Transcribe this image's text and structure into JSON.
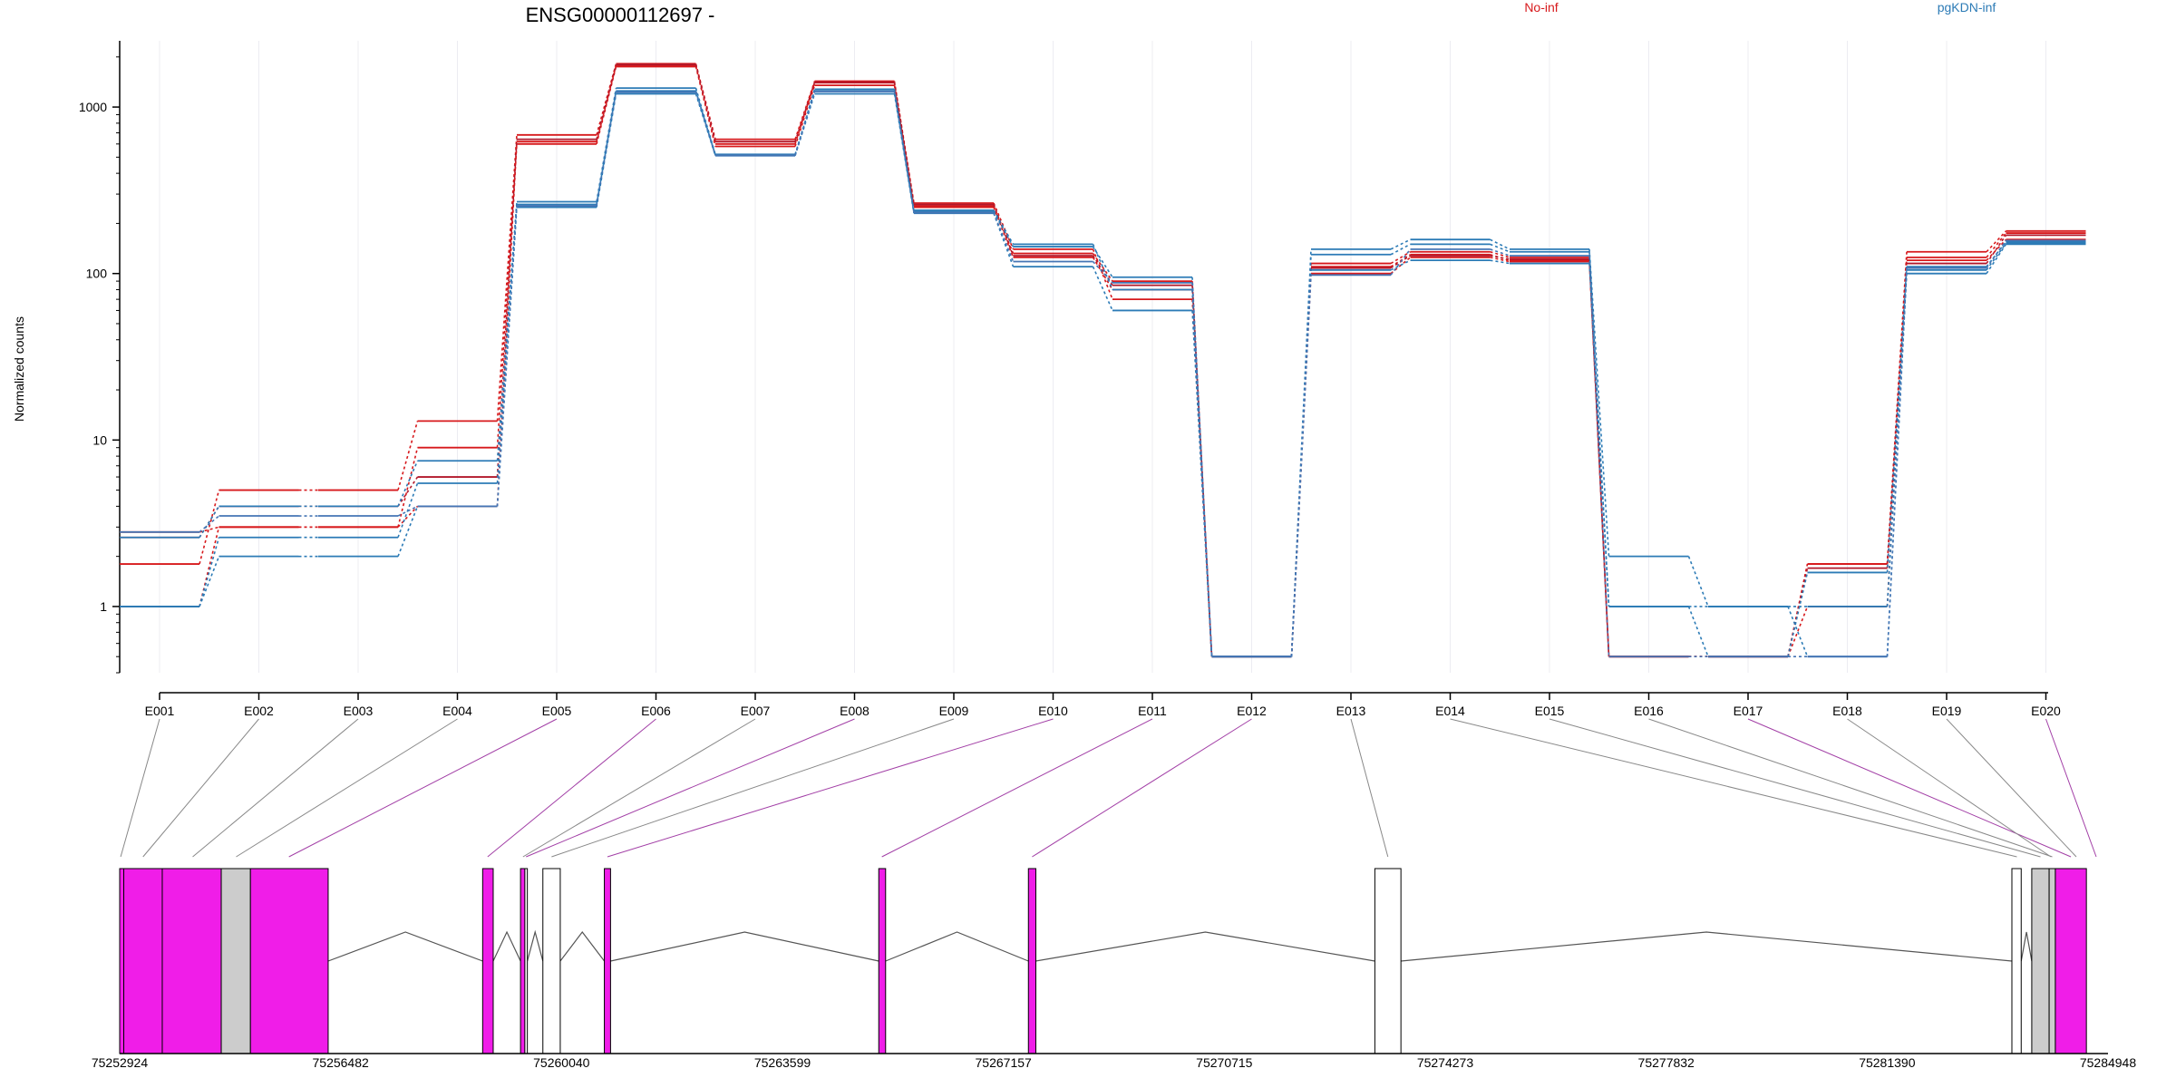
{
  "title": "ENSG00000112697 -",
  "legend": [
    {
      "name": "No-inf",
      "color": "#d7191c"
    },
    {
      "name": "pgKDN-inf",
      "color": "#2c7bb6"
    }
  ],
  "chart_data": [
    {
      "type": "line",
      "title": "ENSG00000112697 -",
      "xlabel": "",
      "ylabel": "Normalized counts",
      "yscale": "log",
      "ylim": [
        0.4,
        2500
      ],
      "ytick_labels": [
        "1",
        "10",
        "100",
        "1000"
      ],
      "ytick_values": [
        1,
        10,
        100,
        1000
      ],
      "grid": "vertical",
      "legend_placement": "top",
      "categories": [
        "E001",
        "E002",
        "E003",
        "E004",
        "E005",
        "E006",
        "E007",
        "E008",
        "E009",
        "E010",
        "E011",
        "E012",
        "E013",
        "E014",
        "E015",
        "E016",
        "E017",
        "E018",
        "E019",
        "E020"
      ],
      "series": [
        {
          "name": "No-inf",
          "color": "#d7191c",
          "values": [
            1.0,
            3.0,
            3.0,
            9.0,
            600,
            1750,
            580,
            1350,
            250,
            125,
            80,
            0.5,
            110,
            130,
            120,
            0.5,
            0.5,
            1.8,
            120,
            160
          ]
        },
        {
          "name": "No-inf",
          "color": "#d7191c",
          "values": [
            1.8,
            5.0,
            5.0,
            13.0,
            680,
            1820,
            640,
            1430,
            265,
            140,
            70,
            0.5,
            115,
            135,
            125,
            0.5,
            0.5,
            1.8,
            135,
            180
          ]
        },
        {
          "name": "No-inf",
          "color": "#d7191c",
          "values": [
            2.8,
            3.0,
            3.0,
            4.0,
            620,
            1780,
            600,
            1400,
            255,
            132,
            90,
            0.5,
            100,
            125,
            118,
            0.5,
            0.5,
            1.0,
            125,
            175
          ]
        },
        {
          "name": "No-inf",
          "color": "#b2182b",
          "values": [
            2.6,
            4.0,
            4.0,
            6.0,
            640,
            1800,
            620,
            1410,
            260,
            128,
            85,
            0.5,
            108,
            128,
            122,
            0.5,
            0.5,
            1.7,
            115,
            170
          ]
        },
        {
          "name": "pgKDN-inf",
          "color": "#2c7bb6",
          "values": [
            1.0,
            2.0,
            2.0,
            4.0,
            250,
            1200,
            510,
            1200,
            230,
            110,
            60,
            0.5,
            140,
            160,
            140,
            2.0,
            1.0,
            1.0,
            100,
            150
          ]
        },
        {
          "name": "pgKDN-inf",
          "color": "#2c7bb6",
          "values": [
            2.6,
            4.0,
            4.0,
            7.5,
            270,
            1300,
            520,
            1250,
            240,
            150,
            80,
            0.5,
            130,
            150,
            135,
            1.0,
            0.5,
            1.6,
            110,
            155
          ]
        },
        {
          "name": "pgKDN-inf",
          "color": "#2c7bb6",
          "values": [
            1.0,
            2.6,
            2.6,
            5.5,
            260,
            1250,
            515,
            1280,
            235,
            145,
            95,
            0.5,
            105,
            120,
            115,
            1.0,
            1.0,
            0.5,
            105,
            152
          ]
        },
        {
          "name": "pgKDN-inf",
          "color": "#4575b4",
          "values": [
            2.8,
            3.5,
            3.5,
            4.0,
            255,
            1230,
            512,
            1240,
            232,
            118,
            88,
            0.5,
            98,
            140,
            128,
            0.5,
            0.5,
            0.5,
            108,
            158
          ]
        }
      ]
    },
    {
      "type": "gene-model",
      "xtick_labels": [
        "75252924",
        "75256482",
        "75260040",
        "75263599",
        "75267157",
        "75270715",
        "75274273",
        "75277832",
        "75281390",
        "75284948"
      ],
      "xrange": [
        75252924,
        75284948
      ],
      "exons": [
        {
          "start": 75252924,
          "end": 75252990,
          "color": "#f01de8"
        },
        {
          "start": 75252990,
          "end": 75253610,
          "color": "#f01de8"
        },
        {
          "start": 75253610,
          "end": 75254560,
          "color": "#f01de8"
        },
        {
          "start": 75254560,
          "end": 75255030,
          "color": "#cccccc"
        },
        {
          "start": 75255030,
          "end": 75256282,
          "color": "#f01de8"
        },
        {
          "start": 75258770,
          "end": 75258940,
          "color": "#f01de8"
        },
        {
          "start": 75259380,
          "end": 75259450,
          "color": "#f01de8"
        },
        {
          "start": 75259450,
          "end": 75259490,
          "color": "#ffffff"
        },
        {
          "start": 75259740,
          "end": 75260020,
          "color": "#ffffff"
        },
        {
          "start": 75260730,
          "end": 75260830,
          "color": "#f01de8"
        },
        {
          "start": 75265150,
          "end": 75265260,
          "color": "#f01de8"
        },
        {
          "start": 75267560,
          "end": 75267680,
          "color": "#f01de8"
        },
        {
          "start": 75273140,
          "end": 75273560,
          "color": "#ffffff"
        },
        {
          "start": 75283400,
          "end": 75283550,
          "color": "#ffffff"
        },
        {
          "start": 75283720,
          "end": 75284000,
          "color": "#cccccc"
        },
        {
          "start": 75284000,
          "end": 75284100,
          "color": "#cccccc"
        },
        {
          "start": 75284100,
          "end": 75284600,
          "color": "#f01de8"
        }
      ],
      "exon_links": [
        {
          "exon": "E001",
          "pos": 75252940,
          "color": "#888888"
        },
        {
          "exon": "E002",
          "pos": 75253300,
          "color": "#888888"
        },
        {
          "exon": "E003",
          "pos": 75254100,
          "color": "#888888"
        },
        {
          "exon": "E004",
          "pos": 75254800,
          "color": "#888888"
        },
        {
          "exon": "E005",
          "pos": 75255650,
          "color": "#a23fa6"
        },
        {
          "exon": "E006",
          "pos": 75258850,
          "color": "#a23fa6"
        },
        {
          "exon": "E007",
          "pos": 75259420,
          "color": "#888888"
        },
        {
          "exon": "E008",
          "pos": 75259470,
          "color": "#a23fa6"
        },
        {
          "exon": "E009",
          "pos": 75259880,
          "color": "#888888"
        },
        {
          "exon": "E010",
          "pos": 75260780,
          "color": "#a23fa6"
        },
        {
          "exon": "E011",
          "pos": 75265200,
          "color": "#a23fa6"
        },
        {
          "exon": "E012",
          "pos": 75267620,
          "color": "#a23fa6"
        },
        {
          "exon": "E013",
          "pos": 75273350,
          "color": "#888888"
        },
        {
          "exon": "E014",
          "pos": 75283480,
          "color": "#888888"
        },
        {
          "exon": "E015",
          "pos": 75283860,
          "color": "#888888"
        },
        {
          "exon": "E016",
          "pos": 75284050,
          "color": "#888888"
        },
        {
          "exon": "E017",
          "pos": 75284350,
          "color": "#a23fa6"
        }
      ]
    }
  ]
}
